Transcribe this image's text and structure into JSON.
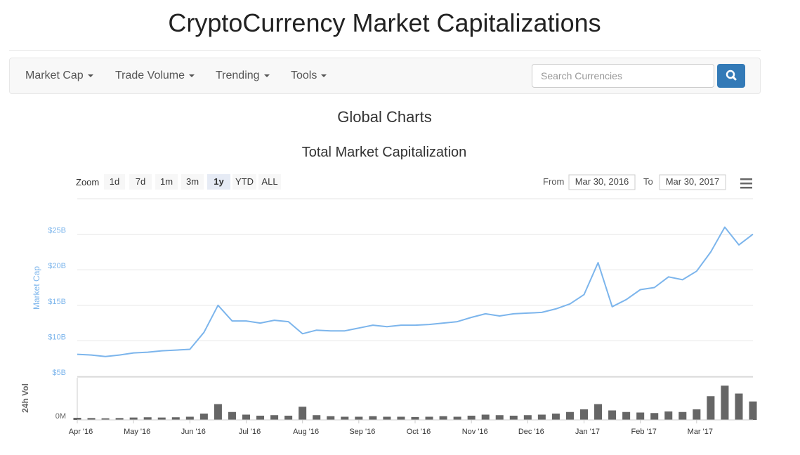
{
  "header": {
    "title": "CryptoCurrency Market Capitalizations"
  },
  "nav": {
    "items": [
      "Market Cap",
      "Trade Volume",
      "Trending",
      "Tools"
    ],
    "search_placeholder": "Search Currencies"
  },
  "section": {
    "title": "Global Charts"
  },
  "controls": {
    "zoom_label": "Zoom",
    "zoom_buttons": [
      "1d",
      "7d",
      "1m",
      "3m",
      "1y",
      "YTD",
      "ALL"
    ],
    "from_label": "From",
    "from_value": "Mar 30, 2016",
    "to_label": "To",
    "to_value": "Mar 30, 2017"
  },
  "chart_data": {
    "type": "line",
    "title": "Total Market Capitalization",
    "ylabel": "Market Cap",
    "y2label": "24h Vol",
    "categories": [
      "Apr '16",
      null,
      null,
      null,
      "May '16",
      null,
      null,
      null,
      "Jun '16",
      null,
      null,
      null,
      "Jul '16",
      null,
      null,
      null,
      "Aug '16",
      null,
      null,
      null,
      "Sep '16",
      null,
      null,
      null,
      "Oct '16",
      null,
      null,
      null,
      "Nov '16",
      null,
      null,
      null,
      "Dec '16",
      null,
      null,
      null,
      "Jan '17",
      null,
      null,
      null,
      "Feb '17",
      null,
      null,
      null,
      "Mar '17",
      null,
      null,
      null,
      null
    ],
    "series": [
      {
        "color": "#7cb5ec",
        "values": [
          8.1,
          8.0,
          7.8,
          8.0,
          8.3,
          8.4,
          8.6,
          8.7,
          8.8,
          11.2,
          15.0,
          12.8,
          12.8,
          12.5,
          12.9,
          12.7,
          11.0,
          11.5,
          11.4,
          11.4,
          11.8,
          12.2,
          12.0,
          12.2,
          12.2,
          12.3,
          12.5,
          12.7,
          13.3,
          13.8,
          13.5,
          13.8,
          13.9,
          14.0,
          14.5,
          15.2,
          16.5,
          21.0,
          14.8,
          15.8,
          17.2,
          17.5,
          19.0,
          18.6,
          19.8,
          22.5,
          26.0,
          23.5,
          25.0
        ]
      },
      {
        "color": "#666666",
        "axis": "y2",
        "values": [
          40,
          35,
          30,
          35,
          45,
          50,
          45,
          50,
          60,
          120,
          300,
          150,
          100,
          80,
          90,
          80,
          250,
          90,
          70,
          60,
          60,
          70,
          60,
          60,
          55,
          60,
          70,
          60,
          80,
          100,
          90,
          80,
          90,
          100,
          120,
          150,
          200,
          300,
          180,
          150,
          140,
          130,
          160,
          150,
          200,
          450,
          650,
          500,
          350
        ]
      }
    ],
    "ylim": [
      5,
      30
    ],
    "yticks": [
      {
        "value": 5,
        "label": "$5B"
      },
      {
        "value": 10,
        "label": "$10B"
      },
      {
        "value": 15,
        "label": "$15B"
      },
      {
        "value": 20,
        "label": "$20B"
      },
      {
        "value": 25,
        "label": "$25B"
      }
    ],
    "y2lim": [
      0,
      800
    ],
    "y2ticks": [
      {
        "value": 0,
        "label": "0M"
      }
    ],
    "grid": true
  }
}
